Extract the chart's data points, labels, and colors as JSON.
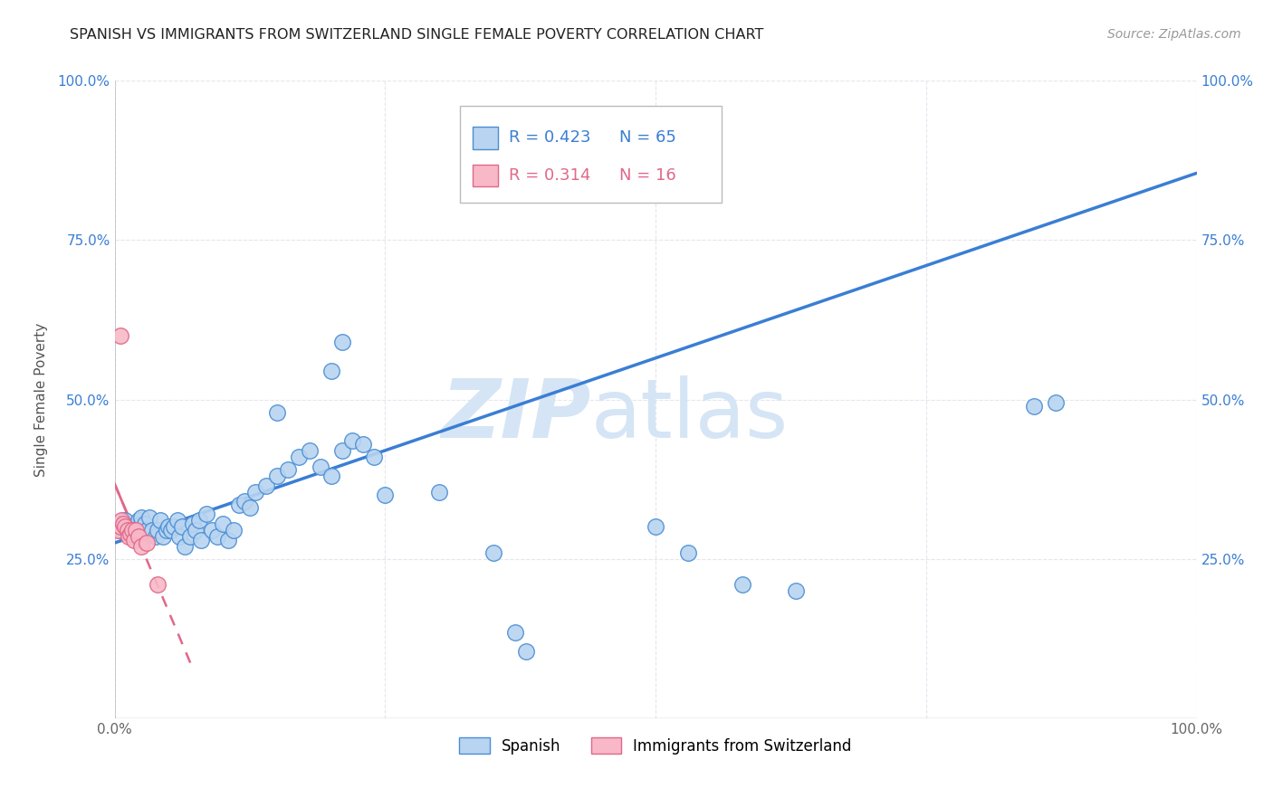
{
  "title": "SPANISH VS IMMIGRANTS FROM SWITZERLAND SINGLE FEMALE POVERTY CORRELATION CHART",
  "source": "Source: ZipAtlas.com",
  "ylabel": "Single Female Poverty",
  "legend_blue_r": "R = 0.423",
  "legend_blue_n": "N = 65",
  "legend_pink_r": "R = 0.314",
  "legend_pink_n": "N = 16",
  "legend_label_blue": "Spanish",
  "legend_label_pink": "Immigrants from Switzerland",
  "blue_fill": "#B8D4F0",
  "pink_fill": "#F8B8C8",
  "blue_edge": "#4A8ED4",
  "pink_edge": "#E06888",
  "blue_line": "#3A7ED4",
  "pink_line": "#E06888",
  "watermark_color": "#D5E5F5",
  "grid_color": "#E5E5EE",
  "bg_color": "#FFFFFF",
  "blue_x": [
    0.005,
    0.01,
    0.012,
    0.015,
    0.018,
    0.02,
    0.022,
    0.025,
    0.025,
    0.028,
    0.03,
    0.032,
    0.035,
    0.038,
    0.04,
    0.042,
    0.045,
    0.048,
    0.05,
    0.052,
    0.055,
    0.058,
    0.06,
    0.062,
    0.065,
    0.07,
    0.072,
    0.075,
    0.078,
    0.08,
    0.085,
    0.09,
    0.095,
    0.1,
    0.105,
    0.11,
    0.115,
    0.12,
    0.125,
    0.13,
    0.14,
    0.15,
    0.16,
    0.17,
    0.18,
    0.19,
    0.2,
    0.21,
    0.22,
    0.23,
    0.24,
    0.25,
    0.3,
    0.35,
    0.37,
    0.38,
    0.5,
    0.53,
    0.58,
    0.63,
    0.15,
    0.2,
    0.21,
    0.85,
    0.87
  ],
  "blue_y": [
    0.295,
    0.31,
    0.295,
    0.3,
    0.29,
    0.3,
    0.31,
    0.305,
    0.315,
    0.305,
    0.295,
    0.315,
    0.295,
    0.285,
    0.295,
    0.31,
    0.285,
    0.295,
    0.3,
    0.295,
    0.3,
    0.31,
    0.285,
    0.3,
    0.27,
    0.285,
    0.305,
    0.295,
    0.31,
    0.28,
    0.32,
    0.295,
    0.285,
    0.305,
    0.28,
    0.295,
    0.335,
    0.34,
    0.33,
    0.355,
    0.365,
    0.38,
    0.39,
    0.41,
    0.42,
    0.395,
    0.38,
    0.42,
    0.435,
    0.43,
    0.41,
    0.35,
    0.355,
    0.26,
    0.135,
    0.105,
    0.3,
    0.26,
    0.21,
    0.2,
    0.48,
    0.545,
    0.59,
    0.49,
    0.495
  ],
  "pink_x": [
    0.003,
    0.005,
    0.006,
    0.008,
    0.01,
    0.012,
    0.013,
    0.015,
    0.016,
    0.018,
    0.02,
    0.022,
    0.025,
    0.03,
    0.04,
    0.005
  ],
  "pink_y": [
    0.295,
    0.3,
    0.31,
    0.305,
    0.3,
    0.295,
    0.285,
    0.29,
    0.295,
    0.28,
    0.295,
    0.285,
    0.27,
    0.275,
    0.21,
    0.6
  ],
  "pink_line_start_x": 0.0,
  "pink_line_end_x": 0.08,
  "blue_line_start_x": 0.0,
  "blue_line_end_x": 1.0,
  "blue_line_y0": 0.275,
  "blue_line_y1": 0.855,
  "xlim": [
    0.0,
    1.0
  ],
  "ylim": [
    0.0,
    1.0
  ],
  "xticks": [
    0.0,
    0.25,
    0.5,
    0.75,
    1.0
  ],
  "xtick_labels": [
    "0.0%",
    "",
    "",
    "",
    "100.0%"
  ],
  "ytick_vals": [
    0.0,
    0.25,
    0.5,
    0.75,
    1.0
  ],
  "ytick_labels": [
    "",
    "25.0%",
    "50.0%",
    "75.0%",
    "100.0%"
  ]
}
